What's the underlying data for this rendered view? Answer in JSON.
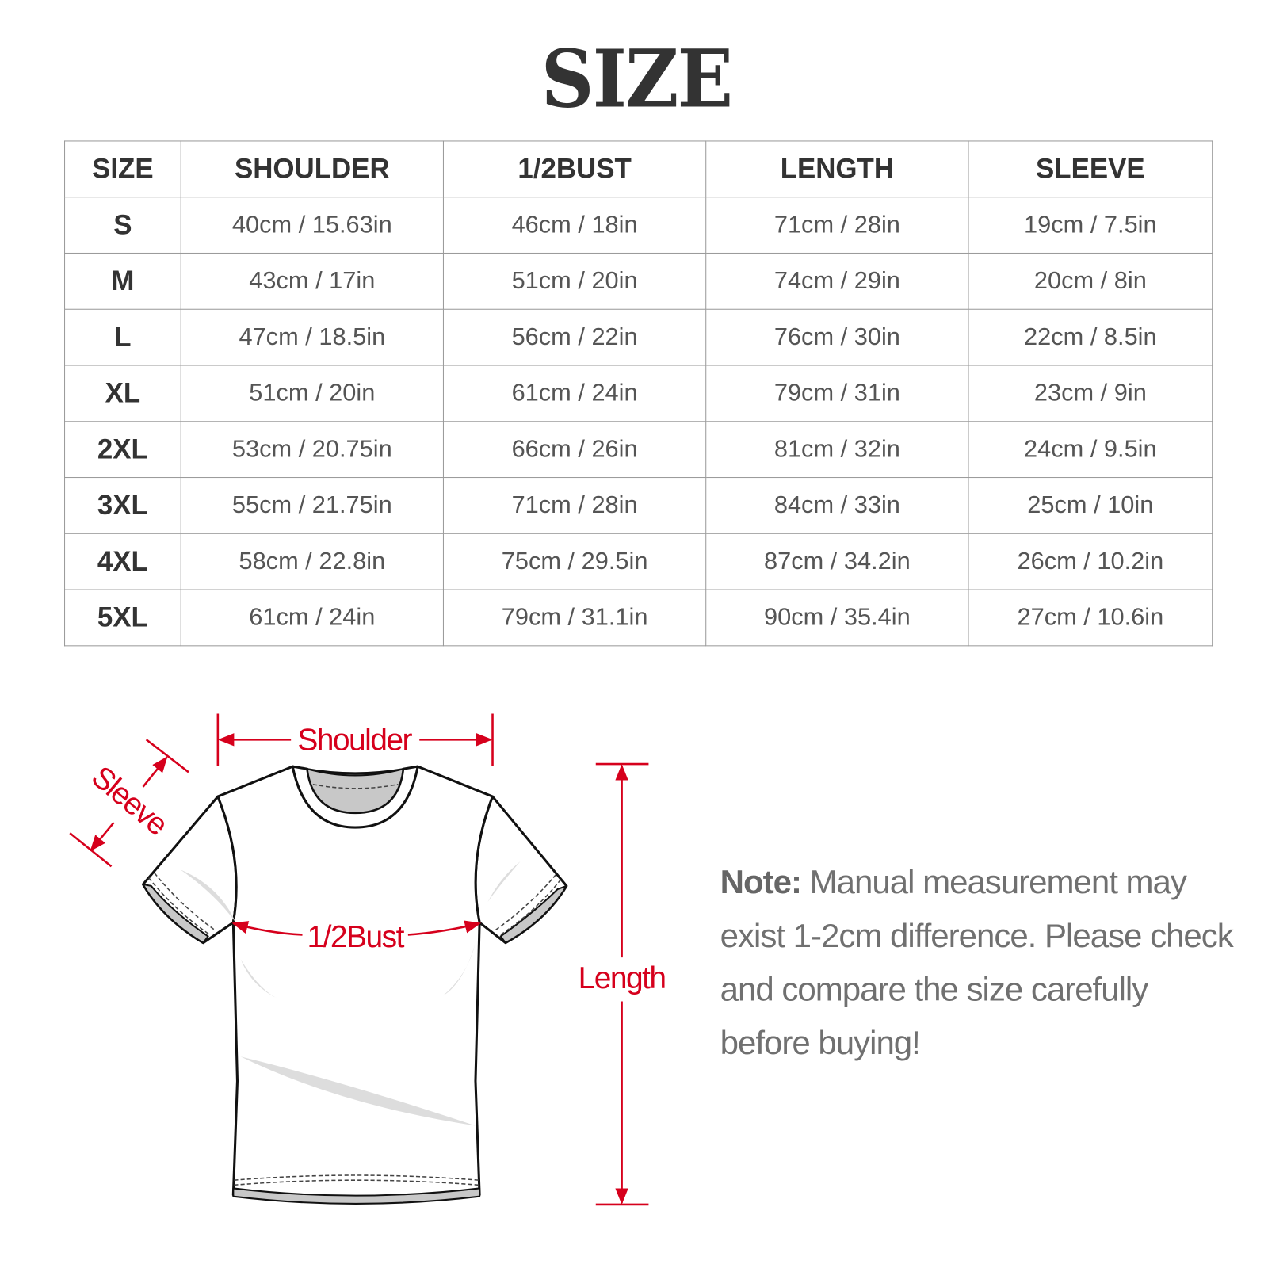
{
  "title": "SIZE",
  "table": {
    "headers": [
      "SIZE",
      "SHOULDER",
      "1/2BUST",
      "LENGTH",
      "SLEEVE"
    ],
    "rows": [
      [
        "S",
        "40cm / 15.63in",
        "46cm / 18in",
        "71cm / 28in",
        "19cm / 7.5in"
      ],
      [
        "M",
        "43cm / 17in",
        "51cm / 20in",
        "74cm / 29in",
        "20cm / 8in"
      ],
      [
        "L",
        "47cm / 18.5in",
        "56cm / 22in",
        "76cm / 30in",
        "22cm / 8.5in"
      ],
      [
        "XL",
        "51cm / 20in",
        "61cm / 24in",
        "79cm / 31in",
        "23cm / 9in"
      ],
      [
        "2XL",
        "53cm / 20.75in",
        "66cm / 26in",
        "81cm / 32in",
        "24cm / 9.5in"
      ],
      [
        "3XL",
        "55cm / 21.75in",
        "71cm / 28in",
        "84cm / 33in",
        "25cm / 10in"
      ],
      [
        "4XL",
        "58cm / 22.8in",
        "75cm / 29.5in",
        "87cm / 34.2in",
        "26cm / 10.2in"
      ],
      [
        "5XL",
        "61cm / 24in",
        "79cm / 31.1in",
        "90cm / 35.4in",
        "27cm / 10.6in"
      ]
    ]
  },
  "diagram": {
    "shoulder": "Shoulder",
    "sleeve": "Sleeve",
    "bust": "1/2Bust",
    "length": "Length",
    "accent_color": "#d6001c"
  },
  "note": {
    "label": "Note:",
    "text": " Manual measurement may exist 1-2cm difference. Please check and compare the size carefully before buying!"
  }
}
